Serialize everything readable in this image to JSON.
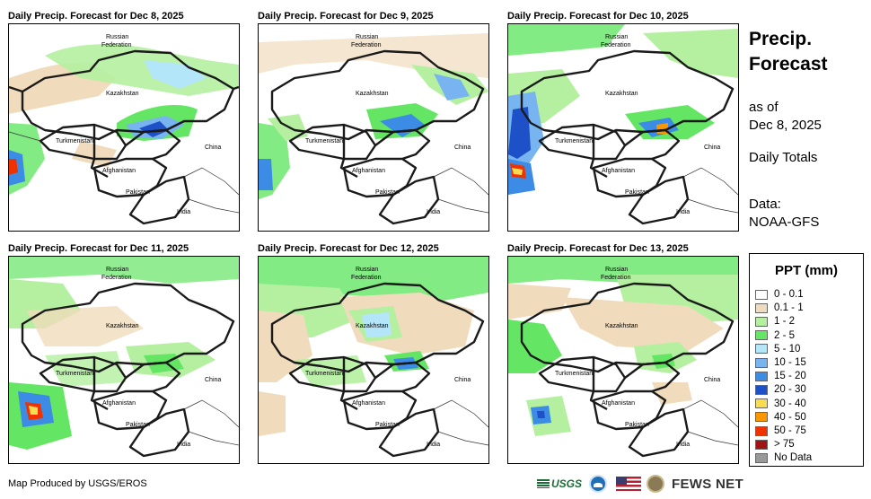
{
  "panels": [
    {
      "title": "Daily Precip. Forecast for Dec 8, 2025"
    },
    {
      "title": "Daily Precip. Forecast for Dec 9, 2025"
    },
    {
      "title": "Daily Precip. Forecast for Dec 10, 2025"
    },
    {
      "title": "Daily Precip. Forecast for Dec 11, 2025"
    },
    {
      "title": "Daily Precip. Forecast for Dec 12, 2025"
    },
    {
      "title": "Daily Precip. Forecast for Dec 13, 2025"
    }
  ],
  "map_labels": {
    "russia_line1": "Russian",
    "russia_line2": "Federation",
    "kazakhstan": "Kazakhstan",
    "turkmenistan": "Turkmenistan",
    "china": "China",
    "afghanistan": "Afghanistan",
    "pakistan": "Pakistan",
    "india": "India"
  },
  "sidebar": {
    "title_line1": "Precip.",
    "title_line2": "Forecast",
    "asof_line1": "as of",
    "asof_line2": "Dec 8, 2025",
    "totals": "Daily Totals",
    "data_line1": "Data:",
    "data_line2": "NOAA-GFS"
  },
  "legend": {
    "title": "PPT (mm)",
    "items": [
      {
        "label": "0 - 0.1",
        "color": "#ffffff"
      },
      {
        "label": "0.1 - 1",
        "color": "#f0dcbc"
      },
      {
        "label": "1 - 2",
        "color": "#b4f0a0"
      },
      {
        "label": "2 - 5",
        "color": "#64e664"
      },
      {
        "label": "5 - 10",
        "color": "#b4e6fa"
      },
      {
        "label": "10 - 15",
        "color": "#78b4f0"
      },
      {
        "label": "15 - 20",
        "color": "#3c8ce6"
      },
      {
        "label": "20 - 30",
        "color": "#1e50c8"
      },
      {
        "label": "30 - 40",
        "color": "#fadc50"
      },
      {
        "label": "40 - 50",
        "color": "#fa9600"
      },
      {
        "label": "50 - 75",
        "color": "#f03200"
      },
      {
        "label": "> 75",
        "color": "#a01414"
      },
      {
        "label": "No Data",
        "color": "#999999"
      }
    ]
  },
  "footer": {
    "credit": "Map Produced by USGS/EROS"
  },
  "logos": {
    "usgs": "USGS",
    "fews": "FEWS NET"
  }
}
